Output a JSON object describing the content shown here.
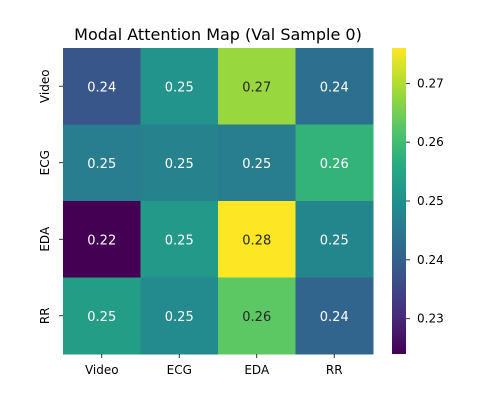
{
  "chart_data": {
    "type": "heatmap",
    "title": "Modal Attention Map (Val Sample 0)",
    "x_categories": [
      "Video",
      "ECG",
      "EDA",
      "RR"
    ],
    "y_categories": [
      "Video",
      "ECG",
      "EDA",
      "RR"
    ],
    "values": [
      [
        0.24,
        0.25,
        0.27,
        0.24
      ],
      [
        0.25,
        0.25,
        0.25,
        0.26
      ],
      [
        0.22,
        0.25,
        0.28,
        0.25
      ],
      [
        0.25,
        0.25,
        0.26,
        0.24
      ]
    ],
    "precise_values": [
      [
        0.238,
        0.251,
        0.268,
        0.243
      ],
      [
        0.246,
        0.247,
        0.246,
        0.258
      ],
      [
        0.224,
        0.252,
        0.276,
        0.248
      ],
      [
        0.253,
        0.249,
        0.263,
        0.241
      ]
    ],
    "colormap": "viridis",
    "colorbar": {
      "vmin": 0.224,
      "vmax": 0.276,
      "ticks": [
        0.23,
        0.24,
        0.25,
        0.26,
        0.27
      ],
      "tick_labels": [
        "0.23",
        "0.24",
        "0.25",
        "0.26",
        "0.27"
      ]
    },
    "annotations": true,
    "xlabel": "",
    "ylabel": ""
  }
}
